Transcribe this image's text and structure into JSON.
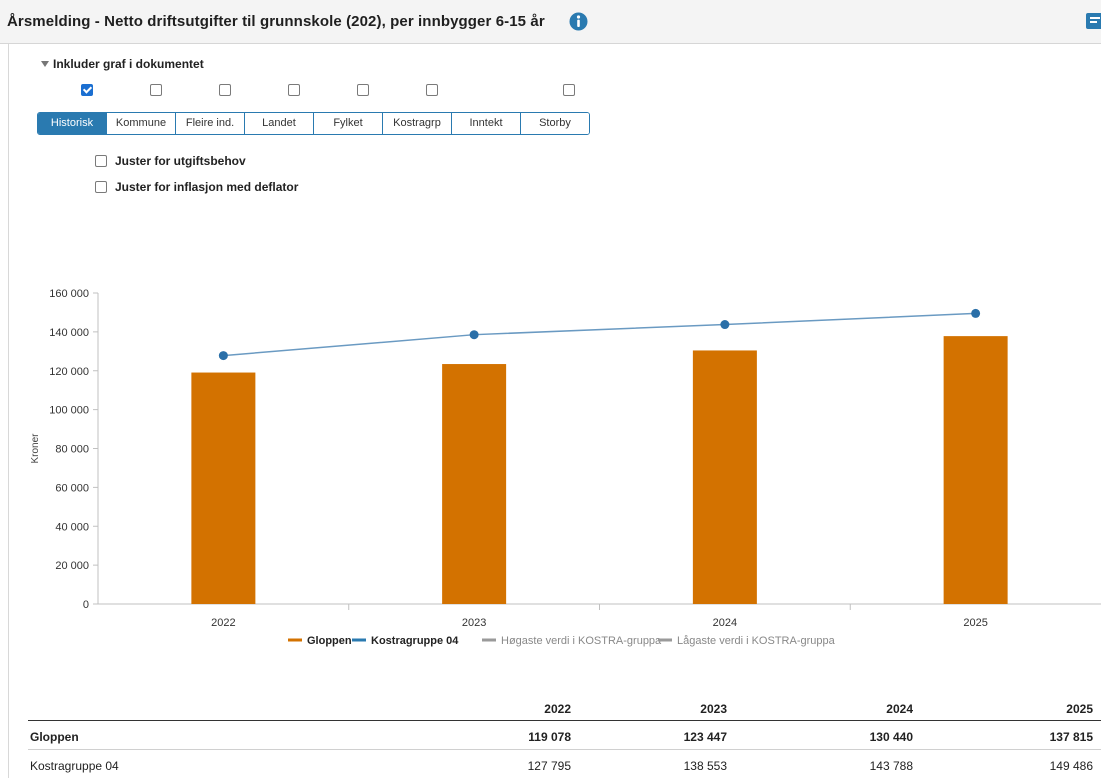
{
  "header": {
    "title": "Årsmelding - Netto driftsutgifter til grunnskole (202), per innbygger 6-15 år"
  },
  "icons": {
    "info": "info-icon",
    "corner": "document-icon",
    "collapse": "triangle-down-icon"
  },
  "options": {
    "include_graph_label": "Inkluder graf i dokumentet",
    "checkboxes_checked": [
      true,
      false,
      false,
      false,
      false,
      false,
      false
    ],
    "adjust_need_label": "Juster for utgiftsbehov",
    "adjust_inflation_label": "Juster for inflasjon med deflator"
  },
  "tabs": [
    {
      "label": "Historisk",
      "active": true
    },
    {
      "label": "Kommune",
      "active": false
    },
    {
      "label": "Fleire ind.",
      "active": false
    },
    {
      "label": "Landet",
      "active": false
    },
    {
      "label": "Fylket",
      "active": false
    },
    {
      "label": "Kostragrp",
      "active": false
    },
    {
      "label": "Inntekt",
      "active": false
    },
    {
      "label": "Storby",
      "active": false
    }
  ],
  "colors": {
    "accent": "#2a7ab0",
    "bar": "#d37200",
    "line": "#6a9ac2",
    "point": "#2a6fa8",
    "grey": "#9a9a9a"
  },
  "chart_data": {
    "type": "bar",
    "categories": [
      "2022",
      "2023",
      "2024",
      "2025"
    ],
    "series": [
      {
        "name": "Gloppen",
        "type": "bar",
        "values": [
          119078,
          123447,
          130440,
          137815
        ]
      },
      {
        "name": "Kostragruppe 04",
        "type": "line",
        "values": [
          127795,
          138553,
          143788,
          149486
        ]
      }
    ],
    "ylabel": "Kroner",
    "ylim": [
      0,
      160000
    ],
    "yticks": [
      0,
      20000,
      40000,
      60000,
      80000,
      100000,
      120000,
      140000,
      160000
    ],
    "ytick_labels": [
      "0",
      "20 000",
      "40 000",
      "60 000",
      "80 000",
      "100 000",
      "120 000",
      "140 000",
      "160 000"
    ],
    "legend": [
      {
        "name": "Gloppen",
        "color": "#d37200"
      },
      {
        "name": "Kostragruppe 04",
        "color": "#2a7ab0"
      },
      {
        "name": "Høgaste verdi i KOSTRA-gruppa",
        "color": "#9a9a9a"
      },
      {
        "name": "Lågaste verdi i KOSTRA-gruppa",
        "color": "#9a9a9a"
      }
    ],
    "legend_position": "bottom",
    "grid": false
  },
  "table": {
    "headers": [
      "",
      "2022",
      "2023",
      "2024",
      "2025"
    ],
    "rows": [
      {
        "label": "Gloppen",
        "values": [
          "119 078",
          "123 447",
          "130 440",
          "137 815"
        ]
      },
      {
        "label": "Kostragruppe 04",
        "values": [
          "127 795",
          "138 553",
          "143 788",
          "149 486"
        ]
      }
    ]
  }
}
